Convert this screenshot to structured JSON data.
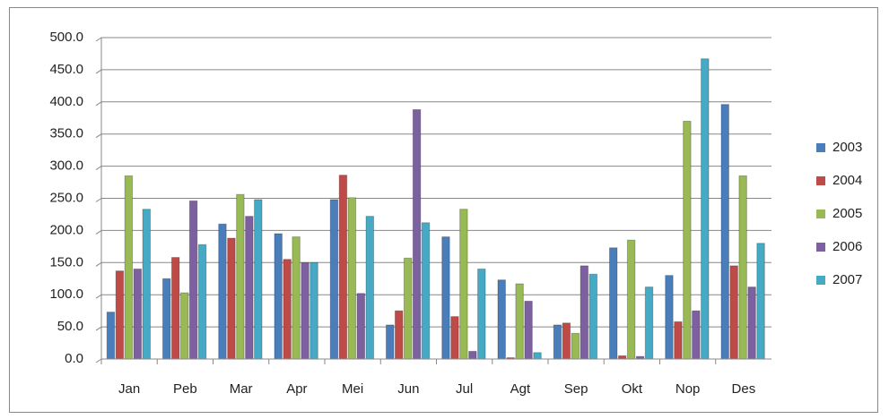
{
  "chart_data": {
    "type": "bar",
    "categories": [
      "Jan",
      "Peb",
      "Mar",
      "Apr",
      "Mei",
      "Jun",
      "Jul",
      "Agt",
      "Sep",
      "Okt",
      "Nop",
      "Des"
    ],
    "series": [
      {
        "name": "2003",
        "color": "#4a7ebb",
        "values": [
          73,
          125,
          210,
          195,
          248,
          53,
          190,
          123,
          53,
          173,
          130,
          396
        ]
      },
      {
        "name": "2004",
        "color": "#be4b48",
        "values": [
          137,
          158,
          188,
          155,
          286,
          75,
          66,
          2,
          56,
          5,
          58,
          145
        ]
      },
      {
        "name": "2005",
        "color": "#98b954",
        "values": [
          285,
          103,
          256,
          190,
          251,
          157,
          233,
          117,
          40,
          185,
          370,
          285
        ]
      },
      {
        "name": "2006",
        "color": "#7d60a0",
        "values": [
          140,
          246,
          222,
          150,
          102,
          388,
          12,
          90,
          145,
          4,
          75,
          112
        ]
      },
      {
        "name": "2007",
        "color": "#46aac5",
        "values": [
          233,
          178,
          248,
          150,
          222,
          212,
          140,
          10,
          132,
          112,
          467,
          180
        ]
      }
    ],
    "ylim": [
      0,
      500
    ],
    "yticks": [
      {
        "value": 0,
        "label": "0.0"
      },
      {
        "value": 50,
        "label": "50.0"
      },
      {
        "value": 100,
        "label": "100.0"
      },
      {
        "value": 150,
        "label": "150.0"
      },
      {
        "value": 200,
        "label": "200.0"
      },
      {
        "value": 250,
        "label": "250.0"
      },
      {
        "value": 300,
        "label": "300.0"
      },
      {
        "value": 350,
        "label": "350.0"
      },
      {
        "value": 400,
        "label": "400.0"
      },
      {
        "value": 450,
        "label": "450.0"
      },
      {
        "value": 500,
        "label": "500.0"
      }
    ],
    "grid": true,
    "legend": "right"
  }
}
